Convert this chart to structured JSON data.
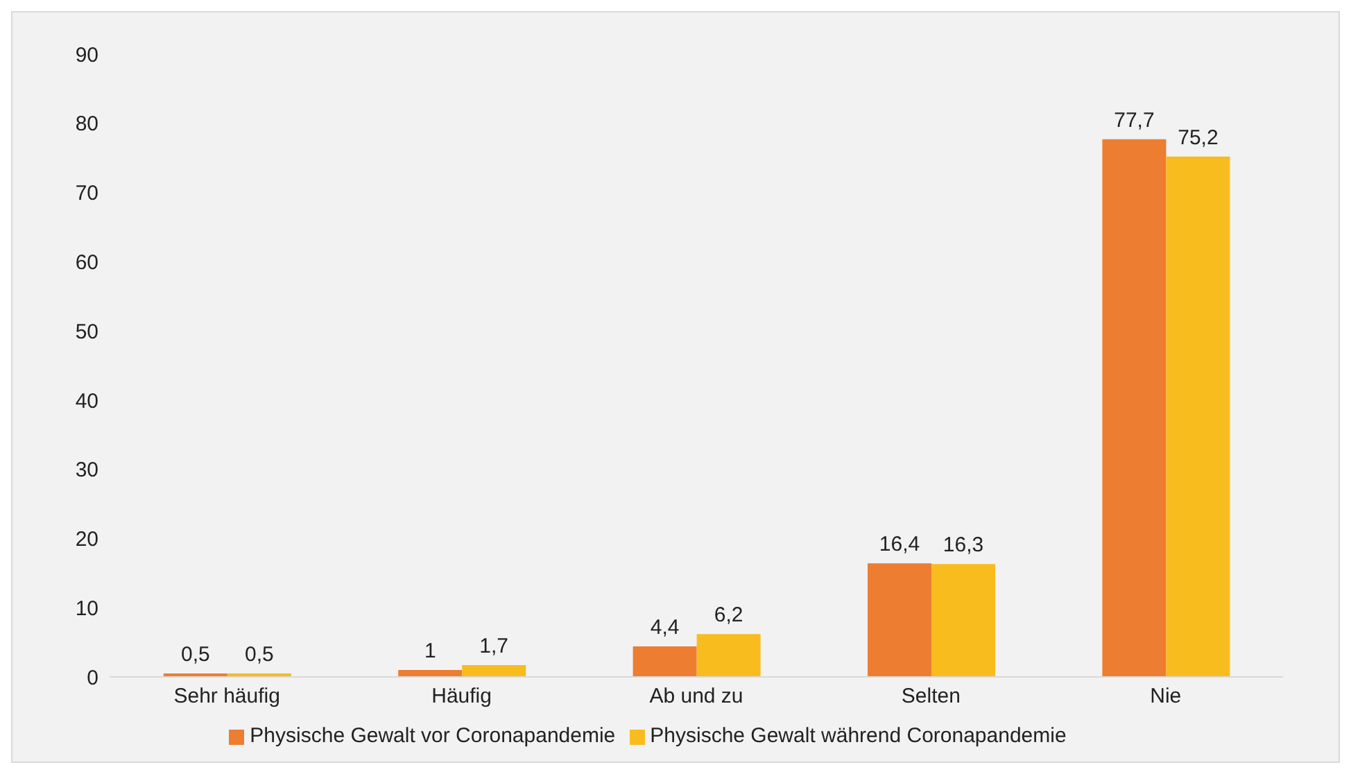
{
  "chart_data": {
    "type": "bar",
    "categories": [
      "Sehr häufig",
      "Häufig",
      "Ab und zu",
      "Selten",
      "Nie"
    ],
    "series": [
      {
        "name": "Physische Gewalt vor Coronapandemie",
        "color": "#ed7d31",
        "values": [
          0.5,
          1,
          4.4,
          16.4,
          77.7
        ],
        "value_labels": [
          "0,5",
          "1",
          "4,4",
          "16,4",
          "77,7"
        ]
      },
      {
        "name": "Physische Gewalt während Coronapandemie",
        "color": "#f9bc1f",
        "values": [
          0.5,
          1.7,
          6.2,
          16.3,
          75.2
        ],
        "value_labels": [
          "0,5",
          "1,7",
          "6,2",
          "16,3",
          "75,2"
        ]
      }
    ],
    "ylim": [
      0,
      90
    ],
    "yticks": [
      0,
      10,
      20,
      30,
      40,
      50,
      60,
      70,
      80,
      90
    ],
    "grid": false,
    "legend": "bottom"
  }
}
